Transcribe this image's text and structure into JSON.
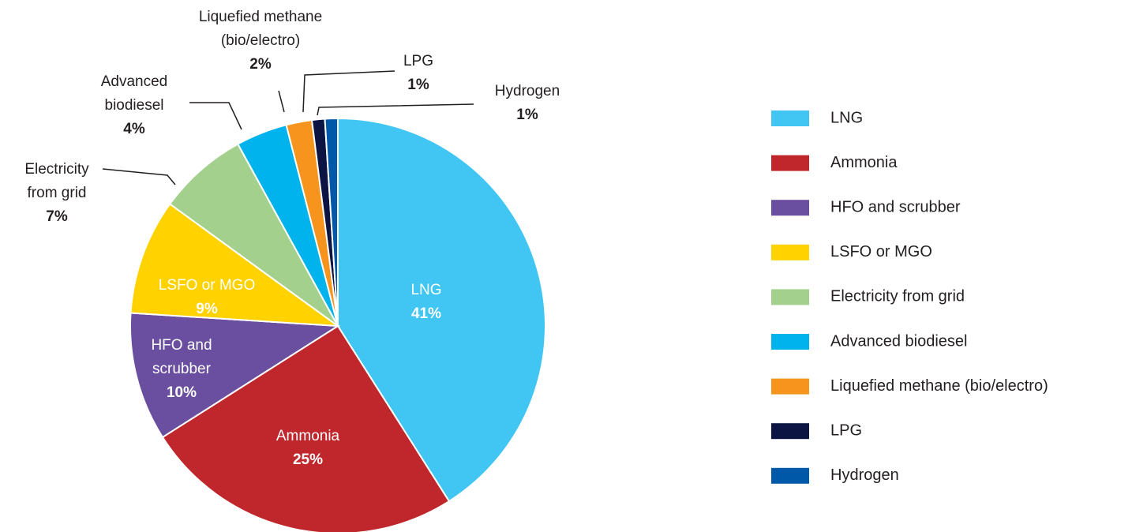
{
  "chart_data": {
    "type": "pie",
    "categories": [
      "LNG",
      "Ammonia",
      "HFO and scrubber",
      "LSFO or MGO",
      "Electricity from grid",
      "Advanced biodiesel",
      "Liquefied methane (bio/electro)",
      "LPG",
      "Hydrogen"
    ],
    "values": [
      41,
      25,
      10,
      9,
      7,
      4,
      2,
      1,
      1
    ],
    "value_labels": [
      "41%",
      "25%",
      "10%",
      "9%",
      "7%",
      "4%",
      "2%",
      "1%",
      "1%"
    ],
    "colors": [
      "#41c6f3",
      "#c0272d",
      "#6a4fa0",
      "#ffd200",
      "#a3d18d",
      "#00b3ec",
      "#f7941d",
      "#0b1442",
      "#0059a8"
    ],
    "legend": "right"
  }
}
